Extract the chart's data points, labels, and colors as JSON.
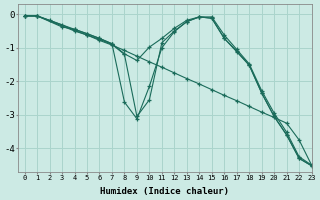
{
  "title": "",
  "xlabel": "Humidex (Indice chaleur)",
  "ylabel": "",
  "background_color": "#cceae4",
  "grid_color": "#aad4cc",
  "line_color": "#1a6b5a",
  "marker": "+",
  "xlim": [
    -0.5,
    23
  ],
  "ylim": [
    -4.7,
    0.3
  ],
  "xtick_labels": [
    "0",
    "1",
    "2",
    "3",
    "4",
    "5",
    "6",
    "7",
    "8",
    "9",
    "10",
    "11",
    "12",
    "13",
    "14",
    "15",
    "16",
    "17",
    "18",
    "19",
    "20",
    "21",
    "22",
    "23"
  ],
  "ytick_labels": [
    "0",
    "-1",
    "-2",
    "-3",
    "-4"
  ],
  "ytick_values": [
    0,
    -1,
    -2,
    -3,
    -4
  ],
  "series": [
    {
      "x": [
        0,
        1,
        2,
        3,
        4,
        5,
        6,
        7,
        8,
        9,
        10,
        11,
        12,
        13,
        14,
        15,
        16,
        17,
        18,
        19,
        20,
        21,
        22,
        23
      ],
      "y": [
        -0.05,
        -0.05,
        -0.18,
        -0.32,
        -0.48,
        -0.62,
        -0.78,
        -0.92,
        -1.08,
        -1.25,
        -1.42,
        -1.58,
        -1.75,
        -1.92,
        -2.08,
        -2.25,
        -2.42,
        -2.58,
        -2.75,
        -2.92,
        -3.08,
        -3.25,
        -3.75,
        -4.5
      ]
    },
    {
      "x": [
        0,
        1,
        4,
        5,
        6,
        7,
        8,
        9,
        10,
        11,
        12,
        13,
        14,
        15,
        16,
        17,
        18,
        19,
        20,
        21,
        22,
        23
      ],
      "y": [
        -0.05,
        -0.05,
        -0.5,
        -0.62,
        -0.75,
        -0.9,
        -1.2,
        -3.05,
        -2.55,
        -0.85,
        -0.5,
        -0.22,
        -0.08,
        -0.12,
        -0.72,
        -1.1,
        -1.52,
        -2.35,
        -3.05,
        -3.6,
        -4.3,
        -4.52
      ]
    },
    {
      "x": [
        0,
        1,
        3,
        4,
        5,
        6,
        7,
        8,
        9,
        10,
        11,
        12,
        13,
        14,
        15,
        16,
        17,
        18,
        19,
        20,
        21,
        22,
        23
      ],
      "y": [
        -0.05,
        -0.05,
        -0.38,
        -0.45,
        -0.58,
        -0.72,
        -0.88,
        -1.18,
        -1.38,
        -0.98,
        -0.72,
        -0.42,
        -0.18,
        -0.08,
        -0.08,
        -0.62,
        -1.05,
        -1.48,
        -2.28,
        -2.95,
        -3.52,
        -4.25,
        -4.5
      ]
    },
    {
      "x": [
        0,
        1,
        4,
        5,
        6,
        7,
        8,
        9,
        10,
        11,
        12,
        13,
        14,
        15,
        16,
        17,
        18,
        19,
        20,
        21,
        22,
        23
      ],
      "y": [
        -0.05,
        -0.05,
        -0.45,
        -0.58,
        -0.72,
        -0.88,
        -2.62,
        -3.12,
        -2.15,
        -1.0,
        -0.52,
        -0.22,
        -0.08,
        -0.12,
        -0.72,
        -1.12,
        -1.52,
        -2.35,
        -3.05,
        -3.6,
        -4.3,
        -4.52
      ]
    }
  ]
}
